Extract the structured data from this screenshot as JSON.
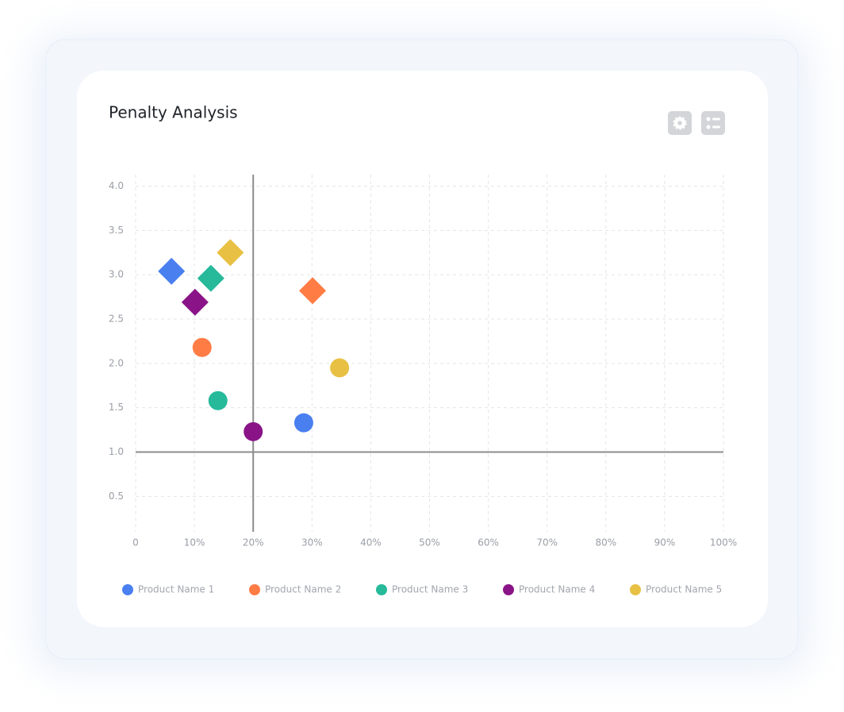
{
  "chart_data": {
    "type": "scatter",
    "title": "Penalty Analysis",
    "xlim": [
      0,
      100
    ],
    "ylim": [
      0.1,
      4.13
    ],
    "xticks": [
      0,
      {
        "value": 10,
        "label": "10%"
      },
      {
        "value": 20,
        "label": "20%"
      },
      {
        "value": 30,
        "label": "30%"
      },
      {
        "value": 40,
        "label": "40%"
      },
      {
        "value": 50,
        "label": "50%"
      },
      {
        "value": 60,
        "label": "60%"
      },
      {
        "value": 70,
        "label": "70%"
      },
      {
        "value": 80,
        "label": "80%"
      },
      {
        "value": 90,
        "label": "90%"
      },
      {
        "value": 100,
        "label": "100%"
      }
    ],
    "yticks": [
      0.5,
      {
        "value": 1,
        "label": "1.0"
      },
      1.5,
      {
        "value": 2,
        "label": "2.0"
      },
      2.5,
      {
        "value": 3,
        "label": "3.0"
      },
      3.5,
      {
        "value": 4,
        "label": "4.0"
      }
    ],
    "grid": true,
    "reference_x": 20,
    "reference_y": 1,
    "markers": [
      "circle",
      "diamond"
    ],
    "legend": "bottom",
    "series": [
      {
        "name": "Product Name 1",
        "color": "#4a7ff0",
        "x": [
          28.6,
          6.1
        ],
        "values": [
          1.33,
          3.04
        ]
      },
      {
        "name": "Product Name 2",
        "color": "#ff7c45",
        "x": [
          11.3,
          30.1
        ],
        "values": [
          2.18,
          2.82
        ]
      },
      {
        "name": "Product Name 3",
        "color": "#26b99a",
        "x": [
          14.0,
          12.8
        ],
        "values": [
          1.58,
          2.96
        ]
      },
      {
        "name": "Product Name 4",
        "color": "#8a1487",
        "x": [
          20.0,
          10.1
        ],
        "values": [
          1.23,
          2.69
        ]
      },
      {
        "name": "Product Name 5",
        "color": "#e8c043",
        "x": [
          34.7,
          16.1
        ],
        "values": [
          1.95,
          3.25
        ]
      }
    ]
  }
}
